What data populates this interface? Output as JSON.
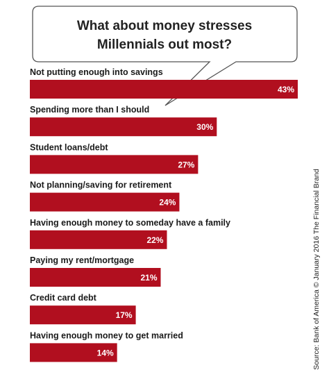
{
  "chart_data": {
    "type": "bar",
    "orientation": "horizontal",
    "title_lines": [
      "What about money stresses",
      "Millennials out most?"
    ],
    "categories": [
      "Not putting enough into savings",
      "Spending more than I should",
      "Student loans/debt",
      "Not planning/saving for retirement",
      "Having enough money to someday have a family",
      "Paying my rent/mortgage",
      "Credit card debt",
      "Having enough money to get married"
    ],
    "values": [
      43,
      30,
      27,
      24,
      22,
      21,
      17,
      14
    ],
    "value_labels": [
      "43%",
      "30%",
      "27%",
      "24%",
      "22%",
      "21%",
      "17%",
      "14%"
    ],
    "xlim": [
      0,
      43
    ],
    "grid": false,
    "legend": "none",
    "bar_color": "#b10f1f",
    "source": "Source: Bank of America © January 2016 The Financial Brand"
  }
}
